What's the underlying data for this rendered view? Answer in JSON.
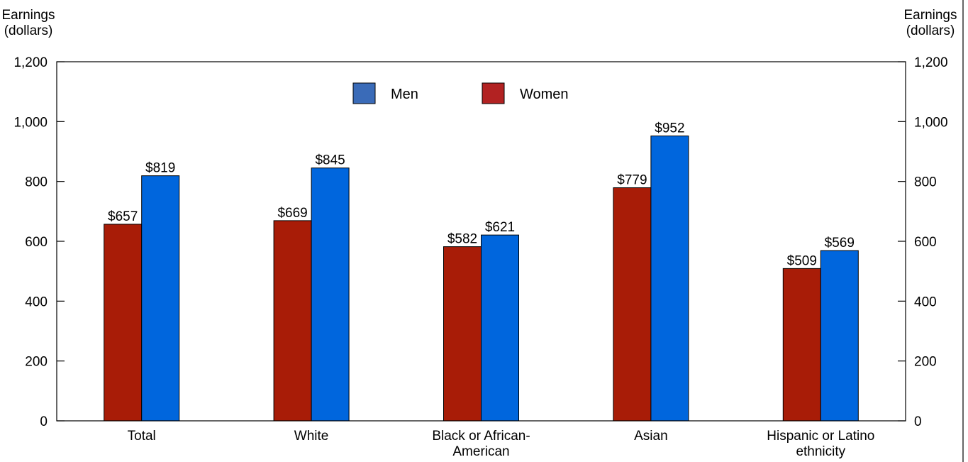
{
  "chart_data": {
    "type": "bar",
    "categories": [
      "Total",
      "White",
      "Black or African-American",
      "Asian",
      "Hispanic or Latino ethnicity"
    ],
    "category_lines": [
      [
        "Total"
      ],
      [
        "White"
      ],
      [
        "Black or African-",
        "American"
      ],
      [
        "Asian"
      ],
      [
        "Hispanic or Latino",
        "ethnicity"
      ]
    ],
    "series": [
      {
        "name": "Women",
        "color": "#a81c07",
        "values": [
          657,
          669,
          582,
          779,
          509
        ],
        "value_labels": [
          "$657",
          "$669",
          "$582",
          "$779",
          "$509"
        ]
      },
      {
        "name": "Men",
        "color": "#0066dd",
        "values": [
          819,
          845,
          621,
          952,
          569
        ],
        "value_labels": [
          "$819",
          "$845",
          "$621",
          "$952",
          "$569"
        ]
      }
    ],
    "legend": [
      {
        "name": "Men",
        "color": "#3a6bb8"
      },
      {
        "name": "Women",
        "color": "#b22222"
      }
    ],
    "legend_position": "top-center",
    "ylabel_lines": [
      "Earnings",
      "(dollars)"
    ],
    "ylim": [
      0,
      1200
    ],
    "yticks": [
      0,
      200,
      400,
      600,
      800,
      1000,
      1200
    ],
    "ytick_labels": [
      "0",
      "200",
      "400",
      "600",
      "800",
      "1,000",
      "1,200"
    ],
    "grid": false
  }
}
